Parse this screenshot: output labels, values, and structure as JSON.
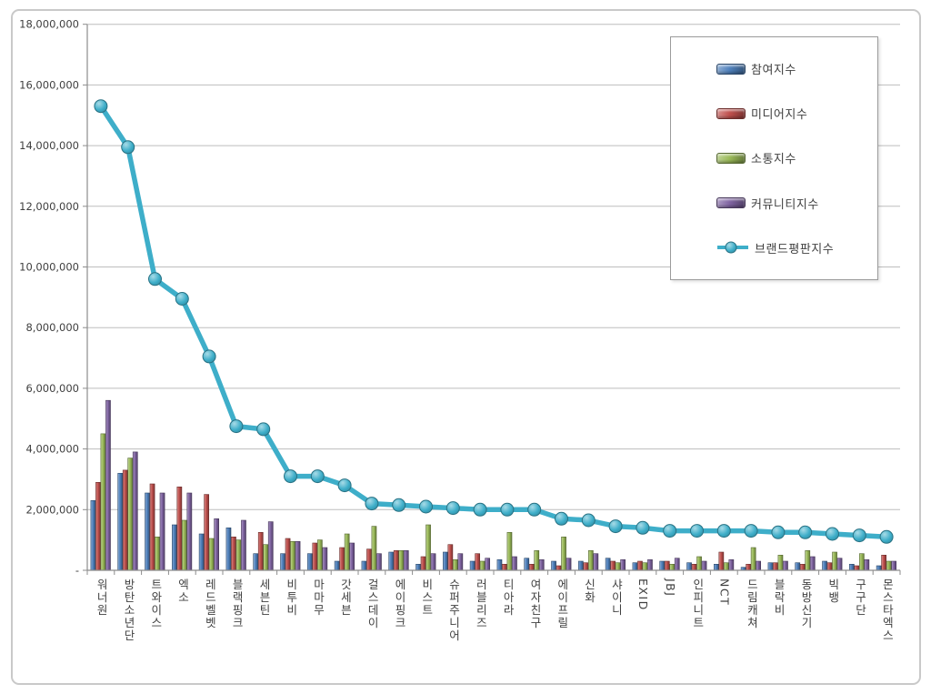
{
  "palette": {
    "participation_bar": "#4F81BD",
    "media_bar": "#C0504D",
    "communication_bar": "#9BBB59",
    "community_bar": "#8064A2",
    "brand_line": "#3EAEC9",
    "grid_color": "#bdbdbd",
    "axis_color": "#8c8c8c",
    "text_color": "#3f3f3f",
    "frame_border": "#c9c9c9",
    "legend_border": "#9b9b9b"
  },
  "chart_data": {
    "type": "bar",
    "subtype": "grouped-bars-with-line-overlay",
    "title": "",
    "xlabel": "",
    "ylabel": "",
    "ylim": [
      0,
      18000000
    ],
    "ytick_step": 2000000,
    "ytick_labels": [
      "-",
      "2,000,000",
      "4,000,000",
      "6,000,000",
      "8,000,000",
      "10,000,000",
      "12,000,000",
      "14,000,000",
      "16,000,000",
      "18,000,000"
    ],
    "grid": true,
    "legend_position": "top-right",
    "categories": [
      "워너원",
      "방탄소년단",
      "트와이스",
      "엑소",
      "레드벨벳",
      "블랙핑크",
      "세븐틴",
      "비투비",
      "마마무",
      "갓세븐",
      "걸스데이",
      "에이핑크",
      "비스트",
      "슈퍼주니어",
      "러블리즈",
      "티아라",
      "여자친구",
      "에이프릴",
      "신화",
      "샤이니",
      "EXID",
      "JBJ",
      "인피니트",
      "NCT",
      "드림캐쳐",
      "블락비",
      "동방신기",
      "빅뱅",
      "구구단",
      "몬스타엑스"
    ],
    "series": [
      {
        "name": "참여지수",
        "id": "participation",
        "type": "bar",
        "color": "#4F81BD",
        "values": [
          2300000,
          3200000,
          2550000,
          1500000,
          1200000,
          1400000,
          550000,
          550000,
          550000,
          300000,
          300000,
          600000,
          200000,
          600000,
          300000,
          350000,
          400000,
          300000,
          300000,
          400000,
          250000,
          300000,
          250000,
          200000,
          100000,
          250000,
          250000,
          300000,
          200000,
          150000
        ]
      },
      {
        "name": "미디어지수",
        "id": "media",
        "type": "bar",
        "color": "#C0504D",
        "values": [
          2900000,
          3300000,
          2850000,
          2750000,
          2500000,
          1100000,
          1250000,
          1050000,
          900000,
          750000,
          700000,
          650000,
          450000,
          850000,
          550000,
          200000,
          200000,
          150000,
          250000,
          300000,
          300000,
          300000,
          200000,
          600000,
          200000,
          250000,
          200000,
          250000,
          150000,
          500000
        ]
      },
      {
        "name": "소통지수",
        "id": "communication",
        "type": "bar",
        "color": "#9BBB59",
        "values": [
          4500000,
          3700000,
          1100000,
          1650000,
          1050000,
          1000000,
          850000,
          950000,
          1000000,
          1200000,
          1450000,
          650000,
          1500000,
          350000,
          300000,
          1250000,
          650000,
          1100000,
          650000,
          250000,
          250000,
          200000,
          450000,
          250000,
          750000,
          500000,
          650000,
          600000,
          550000,
          300000
        ]
      },
      {
        "name": "커뮤니티지수",
        "id": "community",
        "type": "bar",
        "color": "#8064A2",
        "values": [
          5600000,
          3900000,
          2550000,
          2550000,
          1700000,
          1650000,
          1600000,
          950000,
          750000,
          900000,
          550000,
          650000,
          550000,
          550000,
          400000,
          450000,
          350000,
          400000,
          550000,
          350000,
          350000,
          400000,
          300000,
          350000,
          300000,
          300000,
          450000,
          400000,
          350000,
          300000
        ]
      },
      {
        "name": "브랜드평판지수",
        "id": "brand-reputation",
        "type": "line",
        "color": "#3EAEC9",
        "values": [
          15300000,
          13950000,
          9600000,
          8950000,
          7050000,
          4750000,
          4650000,
          3100000,
          3100000,
          2800000,
          2200000,
          2150000,
          2100000,
          2050000,
          2000000,
          2000000,
          2000000,
          1700000,
          1650000,
          1450000,
          1400000,
          1300000,
          1300000,
          1300000,
          1300000,
          1250000,
          1250000,
          1200000,
          1150000,
          1100000
        ]
      }
    ]
  }
}
